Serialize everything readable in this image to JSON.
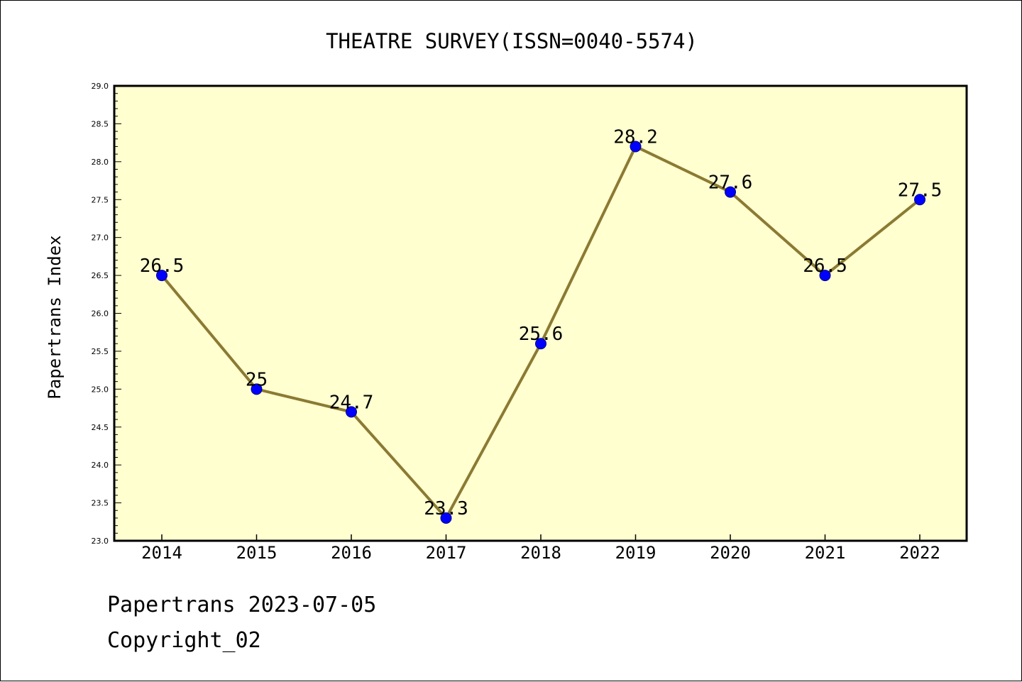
{
  "chart_data": {
    "type": "line",
    "title": "THEATRE SURVEY(ISSN=0040-5574)",
    "xlabel": "",
    "ylabel": "Papertrans Index",
    "categories": [
      "2014",
      "2015",
      "2016",
      "2017",
      "2018",
      "2019",
      "2020",
      "2021",
      "2022"
    ],
    "series": [
      {
        "values": [
          26.5,
          25,
          24.7,
          23.3,
          25.6,
          28.2,
          27.6,
          26.5,
          27.5
        ]
      }
    ],
    "data_labels": [
      "26.5",
      "25",
      "24.7",
      "23.3",
      "25.6",
      "28.2",
      "27.6",
      "26.5",
      "27.5"
    ],
    "ylim": [
      23.0,
      29.0
    ],
    "y_ticks": [
      "23.0",
      "23.5",
      "24.0",
      "24.5",
      "25.0",
      "25.5",
      "26.0",
      "26.5",
      "27.0",
      "27.5",
      "28.0",
      "28.5",
      "29.0"
    ],
    "grid": false,
    "colors": {
      "plot_background": "#ffffd0",
      "line": "#8b7a33",
      "marker": "#0000ff",
      "marker_edge": "#00008b"
    }
  },
  "footer": {
    "line1": "Papertrans 2023-07-05",
    "line2": "Copyright_02"
  }
}
